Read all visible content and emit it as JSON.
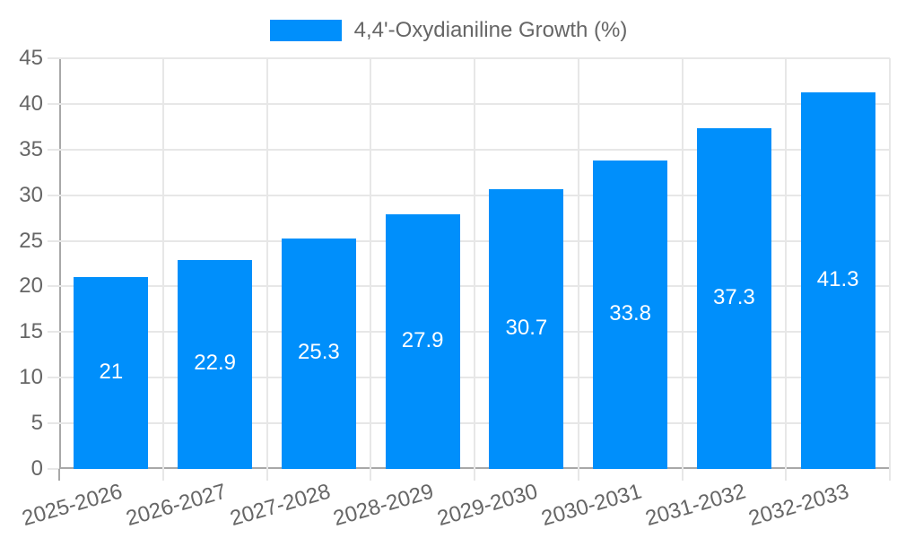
{
  "legend": {
    "label": "4,4'-Oxydianiline Growth (%)",
    "position": "top"
  },
  "chart_data": {
    "type": "bar",
    "title": "4,4'-Oxydianiline Growth (%)",
    "categories": [
      "2025-2026",
      "2026-2027",
      "2027-2028",
      "2028-2029",
      "2029-2030",
      "2030-2031",
      "2031-2032",
      "2032-2033"
    ],
    "values": [
      21,
      22.9,
      25.3,
      27.9,
      30.7,
      33.8,
      37.3,
      41.3
    ],
    "value_labels": [
      "21",
      "22.9",
      "25.3",
      "27.9",
      "30.7",
      "33.8",
      "37.3",
      "41.3"
    ],
    "xlabel": "",
    "ylabel": "",
    "ylim": [
      0,
      45
    ],
    "y_ticks": [
      0,
      5,
      10,
      15,
      20,
      25,
      30,
      35,
      40,
      45
    ],
    "grid": true,
    "legend_position": "top",
    "colors": {
      "bar": "#008FFB",
      "value_label": "#FFFFFF",
      "axis_text": "#666666",
      "gridline": "#E7E7E7",
      "axis_border": "#A8A8A8"
    }
  }
}
